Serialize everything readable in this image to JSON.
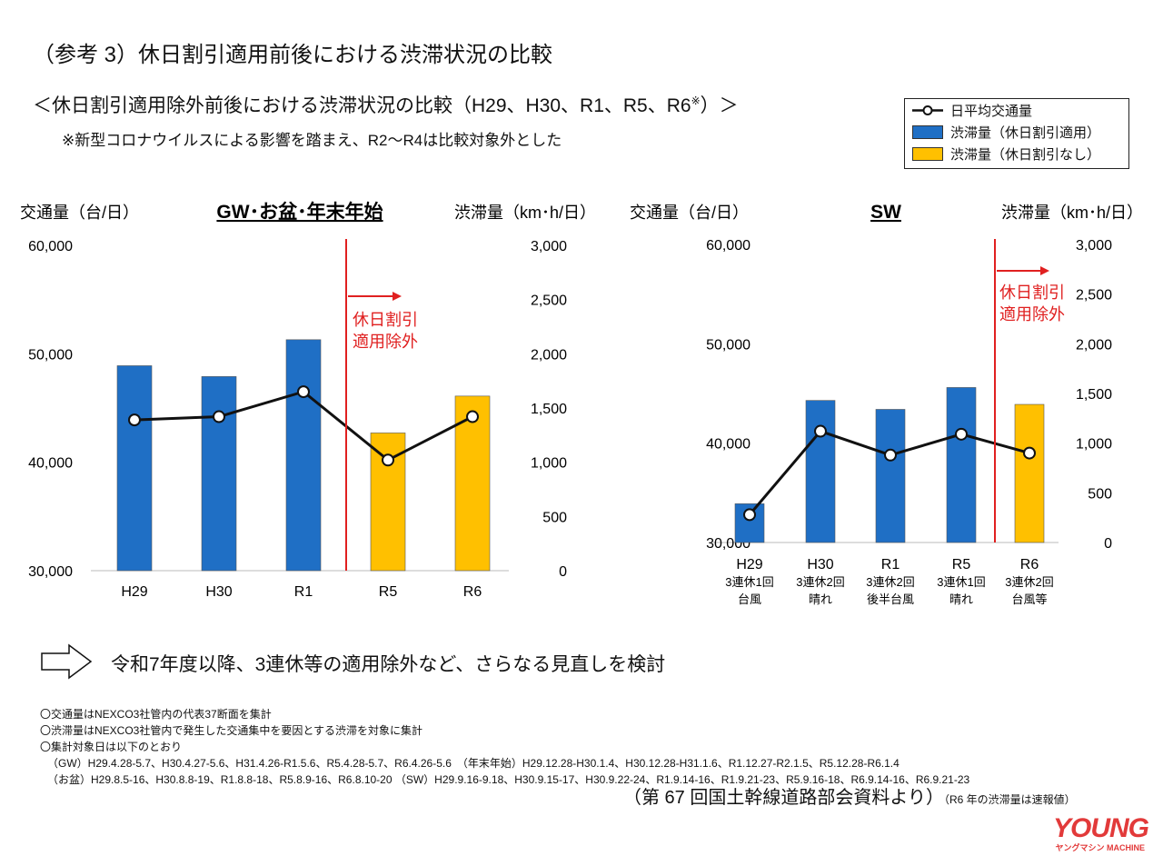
{
  "header": {
    "title": "（参考 3）休日割引適用前後における渋滞状況の比較",
    "subtitle": "＜休日割引適用除外前後における渋滞状況の比較（H29、H30、R1、R5、R6",
    "subtitle_mark": "※",
    "subtitle_end": "）＞",
    "note": "※新型コロナウイルスによる影響を踏まえ、R2～R4は比較対象外とした"
  },
  "legend": {
    "items": [
      {
        "label": "日平均交通量",
        "type": "line-marker"
      },
      {
        "label": "渋滞量（休日割引適用）",
        "color": "#1f6fc5"
      },
      {
        "label": "渋滞量（休日割引なし）",
        "color": "#ffc000"
      }
    ]
  },
  "colors": {
    "applied": "#1f6fc5",
    "not_applied": "#ffc000",
    "line": "#111111",
    "exclusion": "#e02020"
  },
  "chart_data": [
    {
      "type": "bar+line",
      "title": "GW･お盆･年末年始",
      "ylabel_left": "交通量（台/日）",
      "ylabel_right": "渋滞量（km･h/日）",
      "ylim_left": [
        30000,
        60000
      ],
      "ylim_right": [
        0,
        3000
      ],
      "yticks_left": [
        "30,000",
        "40,000",
        "50,000",
        "60,000"
      ],
      "yticks_right": [
        "0",
        "500",
        "1,000",
        "1,500",
        "2,000",
        "2,500",
        "3,000"
      ],
      "categories": [
        "H29",
        "H30",
        "R1",
        "R5",
        "R6"
      ],
      "category_sublabels": [],
      "congestion": [
        1890,
        1790,
        2130,
        1270,
        1610
      ],
      "discount_applied": [
        true,
        true,
        true,
        false,
        false
      ],
      "traffic": [
        43900,
        44200,
        46500,
        40200,
        44200
      ],
      "annotation": [
        "休日割引",
        "適用除外"
      ],
      "exclusion_after": "R1"
    },
    {
      "type": "bar+line",
      "title": "SW",
      "ylabel_left": "交通量（台/日）",
      "ylabel_right": "渋滞量（km･h/日）",
      "ylim_left": [
        30000,
        60000
      ],
      "ylim_right": [
        0,
        3000
      ],
      "yticks_left": [
        "30,000",
        "40,000",
        "50,000",
        "60,000"
      ],
      "yticks_right": [
        "0",
        "500",
        "1,000",
        "1,500",
        "2,000",
        "2,500",
        "3,000"
      ],
      "categories": [
        "H29",
        "H30",
        "R1",
        "R5",
        "R6"
      ],
      "category_sublabels": [
        [
          "3連休1回",
          "台風"
        ],
        [
          "3連休2回",
          "晴れ"
        ],
        [
          "3連休2回",
          "後半台風"
        ],
        [
          "3連休1回",
          "晴れ"
        ],
        [
          "3連休2回",
          "台風等"
        ]
      ],
      "congestion": [
        390,
        1430,
        1340,
        1560,
        1390
      ],
      "discount_applied": [
        true,
        true,
        true,
        true,
        false
      ],
      "traffic": [
        32800,
        41200,
        38800,
        40900,
        39000
      ],
      "annotation": [
        "休日割引",
        "適用除外"
      ],
      "exclusion_after": "R5"
    }
  ],
  "conclusion": "令和7年度以降、3連休等の適用除外など、さらなる見直しを検討",
  "footnotes": [
    "〇交通量はNEXCO3社管内の代表37断面を集計",
    "〇渋滞量はNEXCO3社管内で発生した交通集中を要因とする渋滞を対象に集計",
    "〇集計対象日は以下のとおり",
    "（GW）H29.4.28-5.7、H30.4.27-5.6、H31.4.26-R1.5.6、R5.4.28-5.7、R6.4.26-5.6　（年末年始）H29.12.28-H30.1.4、H30.12.28-H31.1.6、R1.12.27-R2.1.5、R5.12.28-R6.1.4",
    "（お盆）H29.8.5-16、H30.8.8-19、R1.8.8-18、R5.8.9-16、R6.8.10-20 （SW）H29.9.16-9.18、H30.9.15-17、H30.9.22-24、R1.9.14-16、R1.9.21-23、R5.9.16-18、R6.9.14-16、R6.9.21-23"
  ],
  "source": "（第 67 回国土幹線道路部会資料より）",
  "source_note": "（R6 年の渋滞量は速報値）",
  "watermark": {
    "main": "YOUNG",
    "sub": "ヤングマシン MACHINE"
  }
}
